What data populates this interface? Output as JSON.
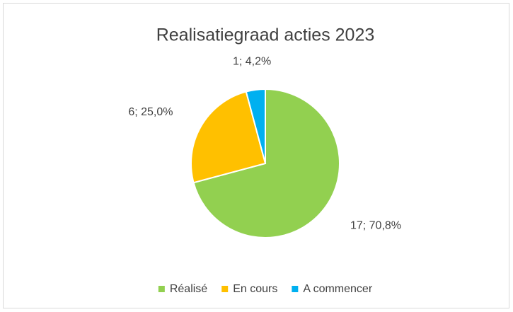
{
  "chart_data": {
    "type": "pie",
    "title": "Realisatiegraad acties 2023",
    "categories": [
      "Réalisé",
      "En cours",
      "A commencer"
    ],
    "values": [
      17,
      6,
      1
    ],
    "value_labels": [
      "17; 70,8%",
      "6; 25,0%",
      "1; 4,2%"
    ],
    "colors": [
      "#92d050",
      "#ffc000",
      "#00b0f0"
    ],
    "legend": "bottom"
  }
}
